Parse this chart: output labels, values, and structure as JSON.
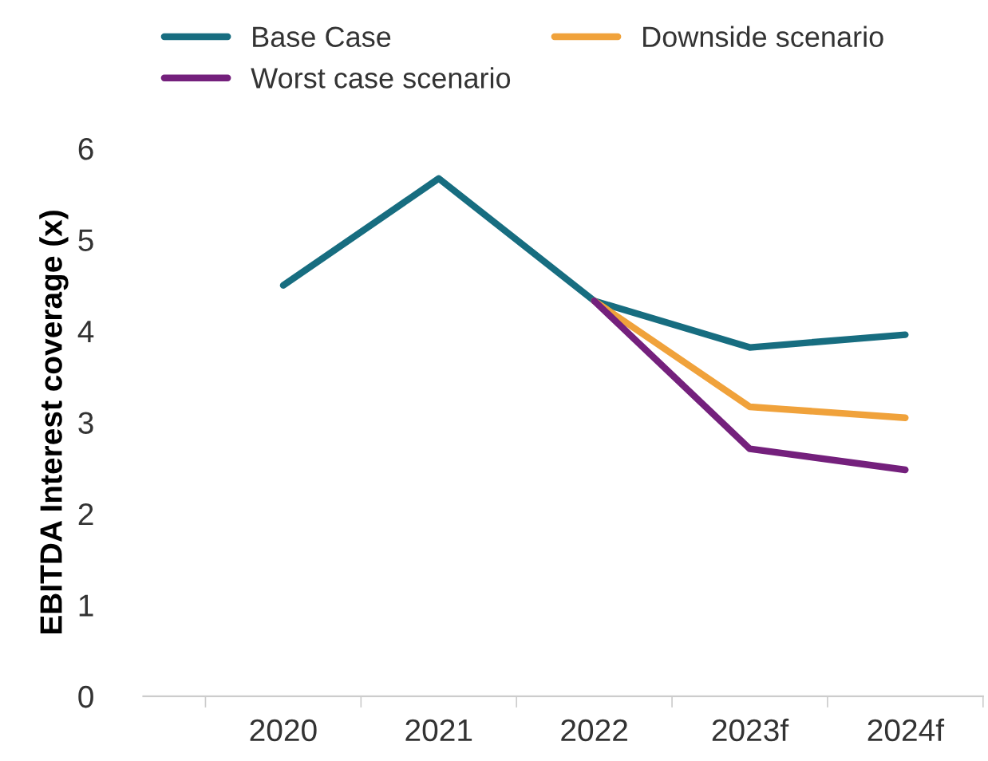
{
  "chart_data": {
    "type": "line",
    "ylabel": "EBITDA Interest coverage (x)",
    "categories": [
      "2020",
      "2021",
      "2022",
      "2023f",
      "2024f"
    ],
    "series": [
      {
        "name": "Base Case",
        "color": "#176d80",
        "values": [
          4.5,
          5.67,
          4.33,
          3.82,
          3.96
        ]
      },
      {
        "name": "Downside scenario",
        "color": "#f0a23b",
        "values": [
          null,
          null,
          4.33,
          3.17,
          3.05
        ]
      },
      {
        "name": "Worst case scenario",
        "color": "#74207c",
        "values": [
          null,
          null,
          4.33,
          2.71,
          2.48
        ]
      }
    ],
    "ylim": [
      0,
      6
    ],
    "yticks": [
      0,
      1,
      2,
      3,
      4,
      5,
      6
    ],
    "grid": false,
    "legend": "top",
    "marker": "none",
    "line_style": "solid"
  }
}
